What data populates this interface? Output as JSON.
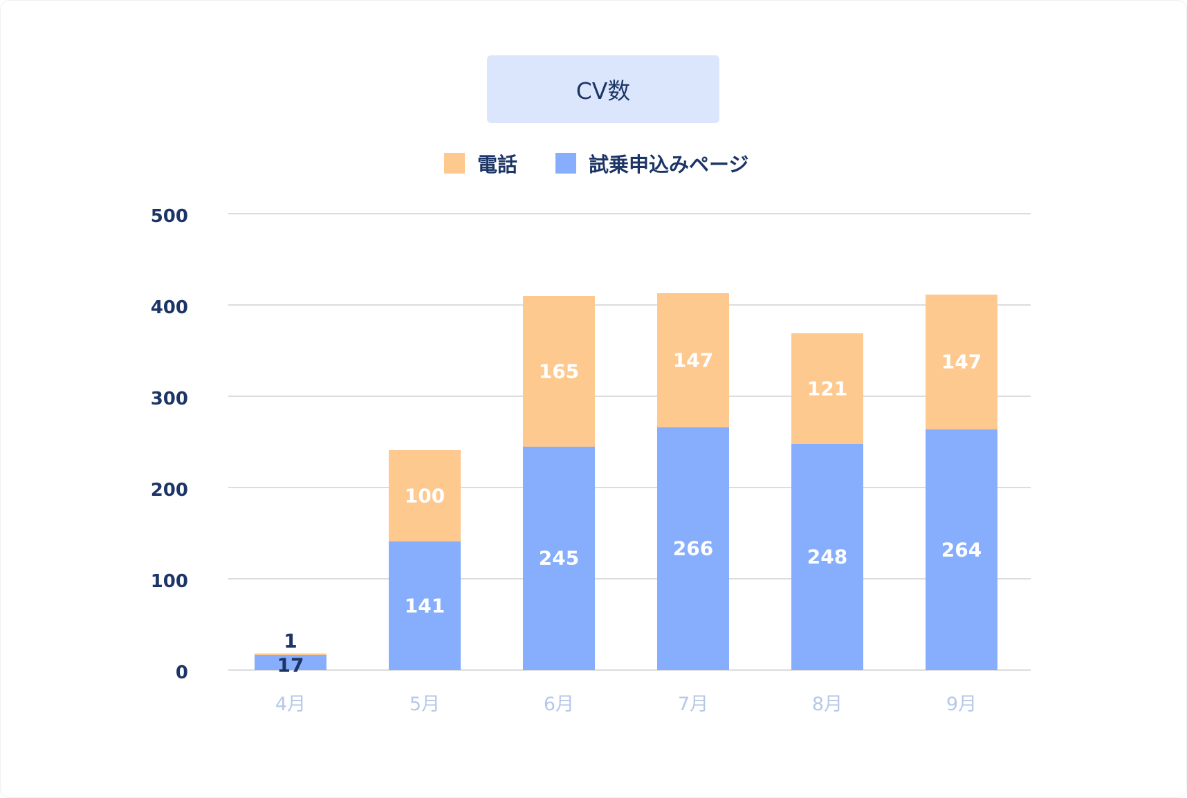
{
  "chart_data": {
    "type": "bar",
    "stacked": true,
    "title": "CV数",
    "categories": [
      "4月",
      "5月",
      "6月",
      "7月",
      "8月",
      "9月"
    ],
    "series": [
      {
        "name": "試乗申込みページ",
        "color": "#87aefc",
        "values": [
          17,
          141,
          245,
          266,
          248,
          264
        ]
      },
      {
        "name": "電話",
        "color": "#fec98f",
        "values": [
          1,
          100,
          165,
          147,
          121,
          147
        ]
      }
    ],
    "xlabel": "",
    "ylabel": "",
    "ylim": [
      0,
      500
    ],
    "yticks": [
      0,
      100,
      200,
      300,
      400,
      500
    ],
    "grid": true,
    "legend_position": "top"
  },
  "title": "CV数",
  "legend": [
    {
      "label": "電話",
      "color": "#fec98f"
    },
    {
      "label": "試乗申込みページ",
      "color": "#87aefc"
    }
  ],
  "yticks": [
    "500",
    "400",
    "300",
    "200",
    "100",
    "0"
  ],
  "xticks": [
    "4月",
    "5月",
    "6月",
    "7月",
    "8月",
    "9月"
  ],
  "labels": {
    "phone": [
      "1",
      "100",
      "165",
      "147",
      "121",
      "147"
    ],
    "web": [
      "17",
      "141",
      "245",
      "266",
      "248",
      "264"
    ]
  }
}
